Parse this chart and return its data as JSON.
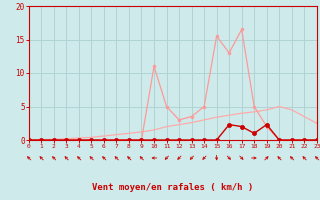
{
  "xlabel": "Vent moyen/en rafales ( km/h )",
  "x_values": [
    0,
    1,
    2,
    3,
    4,
    5,
    6,
    7,
    8,
    9,
    10,
    11,
    12,
    13,
    14,
    15,
    16,
    17,
    18,
    19,
    20,
    21,
    22,
    23
  ],
  "y_rafales": [
    0,
    0,
    0,
    0,
    0,
    0,
    0,
    0,
    0,
    0,
    11,
    5,
    3,
    3.5,
    5,
    15.5,
    13,
    16.5,
    5,
    2,
    0,
    0,
    0,
    0
  ],
  "y_moyen": [
    0,
    0,
    0,
    0,
    0,
    0,
    0,
    0,
    0,
    0,
    0,
    0,
    0,
    0,
    0,
    0,
    2.3,
    2,
    1,
    2.3,
    0,
    0,
    0,
    0
  ],
  "y_trend": [
    0,
    0.05,
    0.1,
    0.2,
    0.3,
    0.4,
    0.6,
    0.8,
    1.0,
    1.2,
    1.5,
    2.0,
    2.3,
    2.6,
    3.0,
    3.4,
    3.7,
    4.0,
    4.2,
    4.5,
    5.0,
    4.5,
    3.5,
    2.5
  ],
  "bg_color": "#ceeaea",
  "grid_color": "#b0d4d4",
  "line_rafales_color": "#ff9999",
  "line_moyen_color": "#cc0000",
  "line_trend_color": "#ffaaaa",
  "ylim": [
    0,
    20
  ],
  "xlim": [
    0,
    23
  ],
  "yticks": [
    0,
    5,
    10,
    15,
    20
  ],
  "xticks": [
    0,
    1,
    2,
    3,
    4,
    5,
    6,
    7,
    8,
    9,
    10,
    11,
    12,
    13,
    14,
    15,
    16,
    17,
    18,
    19,
    20,
    21,
    22,
    23
  ],
  "wind_dirs": [
    315,
    315,
    315,
    315,
    315,
    315,
    315,
    315,
    315,
    315,
    270,
    225,
    225,
    225,
    225,
    180,
    135,
    135,
    90,
    45,
    315,
    315,
    315,
    315
  ]
}
